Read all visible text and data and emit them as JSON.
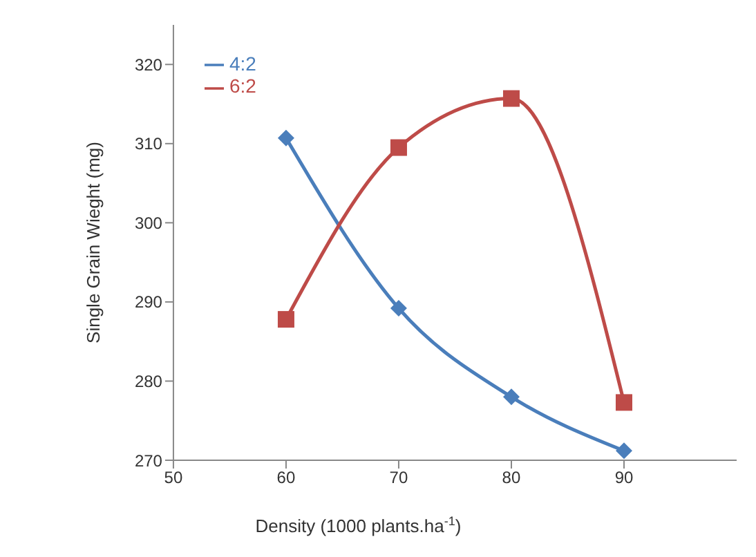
{
  "chart_data": {
    "type": "line",
    "xlabel": "Density (1000 plants.ha$^{-1}$)",
    "ylabel": "Single Grain Wieght (mg)",
    "x": [
      60,
      70,
      80,
      90
    ],
    "series": [
      {
        "name": "4:2",
        "color": "#4a7ebb",
        "values": [
          310.7,
          289.2,
          278,
          271.2
        ],
        "marker": "diamond"
      },
      {
        "name": "6:2",
        "color": "#be4b48",
        "values": [
          287.8,
          309.5,
          315.7,
          277.3
        ],
        "marker": "square"
      }
    ],
    "xlim": [
      50,
      100
    ],
    "xticks": [
      50,
      60,
      70,
      80,
      90
    ],
    "ylim": [
      270,
      325
    ],
    "yticks": [
      270,
      280,
      290,
      300,
      310,
      320
    ],
    "legend": "top left",
    "line_style": "solid"
  }
}
